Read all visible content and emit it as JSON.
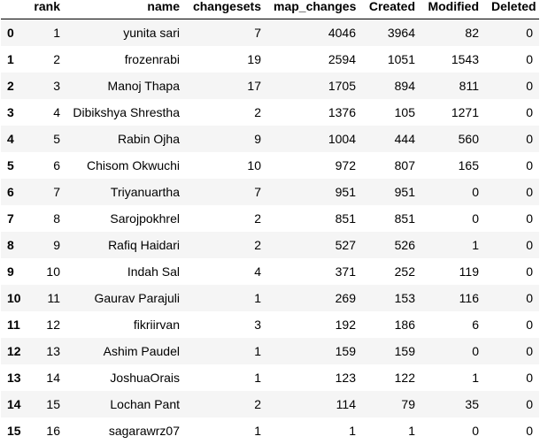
{
  "table": {
    "columns": [
      "",
      "rank",
      "name",
      "changesets",
      "map_changes",
      "Created",
      "Modified",
      "Deleted"
    ],
    "rows": [
      {
        "index": "0",
        "rank": "1",
        "name": "yunita sari",
        "changesets": "7",
        "map_changes": "4046",
        "created": "3964",
        "modified": "82",
        "deleted": "0"
      },
      {
        "index": "1",
        "rank": "2",
        "name": "frozenrabi",
        "changesets": "19",
        "map_changes": "2594",
        "created": "1051",
        "modified": "1543",
        "deleted": "0"
      },
      {
        "index": "2",
        "rank": "3",
        "name": "Manoj Thapa",
        "changesets": "17",
        "map_changes": "1705",
        "created": "894",
        "modified": "811",
        "deleted": "0"
      },
      {
        "index": "3",
        "rank": "4",
        "name": "Dibikshya Shrestha",
        "changesets": "2",
        "map_changes": "1376",
        "created": "105",
        "modified": "1271",
        "deleted": "0"
      },
      {
        "index": "4",
        "rank": "5",
        "name": "Rabin Ojha",
        "changesets": "9",
        "map_changes": "1004",
        "created": "444",
        "modified": "560",
        "deleted": "0"
      },
      {
        "index": "5",
        "rank": "6",
        "name": "Chisom Okwuchi",
        "changesets": "10",
        "map_changes": "972",
        "created": "807",
        "modified": "165",
        "deleted": "0"
      },
      {
        "index": "6",
        "rank": "7",
        "name": "Triyanuartha",
        "changesets": "7",
        "map_changes": "951",
        "created": "951",
        "modified": "0",
        "deleted": "0"
      },
      {
        "index": "7",
        "rank": "8",
        "name": "Sarojpokhrel",
        "changesets": "2",
        "map_changes": "851",
        "created": "851",
        "modified": "0",
        "deleted": "0"
      },
      {
        "index": "8",
        "rank": "9",
        "name": "Rafiq Haidari",
        "changesets": "2",
        "map_changes": "527",
        "created": "526",
        "modified": "1",
        "deleted": "0"
      },
      {
        "index": "9",
        "rank": "10",
        "name": "Indah Sal",
        "changesets": "4",
        "map_changes": "371",
        "created": "252",
        "modified": "119",
        "deleted": "0"
      },
      {
        "index": "10",
        "rank": "11",
        "name": "Gaurav Parajuli",
        "changesets": "1",
        "map_changes": "269",
        "created": "153",
        "modified": "116",
        "deleted": "0"
      },
      {
        "index": "11",
        "rank": "12",
        "name": "fikriirvan",
        "changesets": "3",
        "map_changes": "192",
        "created": "186",
        "modified": "6",
        "deleted": "0"
      },
      {
        "index": "12",
        "rank": "13",
        "name": "Ashim Paudel",
        "changesets": "1",
        "map_changes": "159",
        "created": "159",
        "modified": "0",
        "deleted": "0"
      },
      {
        "index": "13",
        "rank": "14",
        "name": "JoshuaOrais",
        "changesets": "1",
        "map_changes": "123",
        "created": "122",
        "modified": "1",
        "deleted": "0"
      },
      {
        "index": "14",
        "rank": "15",
        "name": "Lochan Pant",
        "changesets": "2",
        "map_changes": "114",
        "created": "79",
        "modified": "35",
        "deleted": "0"
      },
      {
        "index": "15",
        "rank": "16",
        "name": "sagarawrz07",
        "changesets": "1",
        "map_changes": "1",
        "created": "1",
        "modified": "0",
        "deleted": "0"
      }
    ]
  },
  "colors": {
    "stripe": "#f5f5f5",
    "background": "#ffffff",
    "header_rule": "#000000"
  }
}
